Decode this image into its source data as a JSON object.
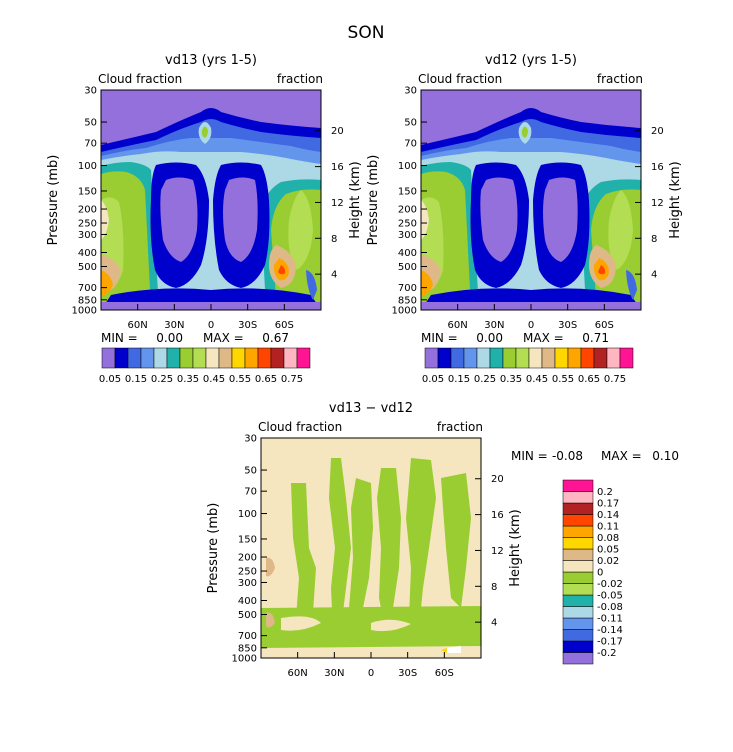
{
  "figure_title": "SON",
  "panel_top_left": {
    "title": "vd13 (yrs 1-5)",
    "left_label": "Cloud fraction",
    "right_label": "fraction",
    "min_label": "MIN =",
    "min_value": "0.00",
    "max_label": "MAX =",
    "max_value": "0.67"
  },
  "panel_top_right": {
    "title": "vd12 (yrs 1-5)",
    "left_label": "Cloud fraction",
    "right_label": "fraction",
    "min_label": "MIN =",
    "min_value": "0.00",
    "max_label": "MAX =",
    "max_value": "0.71"
  },
  "panel_bottom": {
    "title": "vd13 − vd12",
    "left_label": "Cloud fraction",
    "right_label": "fraction",
    "min_label": "MIN =",
    "min_value": "-0.08",
    "max_label": "MAX =",
    "max_value": "0.10"
  },
  "axes": {
    "ylabel": "Pressure (mb)",
    "ylabel_right": "Height (km)",
    "pressure_ticks": [
      "30",
      "50",
      "70",
      "100",
      "150",
      "200",
      "250",
      "300",
      "400",
      "500",
      "700",
      "850",
      "1000"
    ],
    "height_ticks": [
      "20",
      "16",
      "12",
      "8",
      "4"
    ],
    "lat_ticks": [
      "60N",
      "30N",
      "0",
      "30S",
      "60S"
    ]
  },
  "colorbar_top": {
    "colors": [
      "#9370db",
      "#0000cd",
      "#4169e1",
      "#6495ed",
      "#add8e6",
      "#20b2aa",
      "#9acd32",
      "#b3dd52",
      "#f5e6c0",
      "#deb887",
      "#ffd700",
      "#ffa500",
      "#ff4500",
      "#b22222",
      "#ffb6c1",
      "#ff1493"
    ],
    "labels": [
      "0.05",
      "0.15",
      "0.25",
      "0.35",
      "0.45",
      "0.55",
      "0.65",
      "0.75"
    ]
  },
  "colorbar_diff": {
    "colors": [
      "#9370db",
      "#0000cd",
      "#4169e1",
      "#6495ed",
      "#add8e6",
      "#20b2aa",
      "#b3dd52",
      "#9acd32",
      "#f5e6c0",
      "#deb887",
      "#ffd700",
      "#ffa500",
      "#ff4500",
      "#b22222",
      "#ffb6c1",
      "#ff1493"
    ],
    "labels": [
      "-0.2",
      "-0.17",
      "-0.14",
      "-0.11",
      "-0.08",
      "-0.05",
      "-0.02",
      "0",
      "0.02",
      "0.05",
      "0.08",
      "0.11",
      "0.14",
      "0.17",
      "0.2"
    ]
  },
  "chart_data": [
    {
      "type": "heatmap",
      "title": "vd13 (yrs 1-5)",
      "season": "SON",
      "variable": "Cloud fraction",
      "x_axis": [
        "60N",
        "30N",
        "0",
        "30S",
        "60S"
      ],
      "y_axis_pressure_mb": [
        30,
        50,
        70,
        100,
        150,
        200,
        250,
        300,
        400,
        500,
        700,
        850,
        1000
      ],
      "y_axis_height_km": [
        20,
        16,
        12,
        8,
        4
      ],
      "min": 0.0,
      "max": 0.67,
      "ylabel": "Pressure (mb)",
      "ylabel_right": "Height (km)"
    },
    {
      "type": "heatmap",
      "title": "vd12 (yrs 1-5)",
      "season": "SON",
      "variable": "Cloud fraction",
      "x_axis": [
        "60N",
        "30N",
        "0",
        "30S",
        "60S"
      ],
      "y_axis_pressure_mb": [
        30,
        50,
        70,
        100,
        150,
        200,
        250,
        300,
        400,
        500,
        700,
        850,
        1000
      ],
      "y_axis_height_km": [
        20,
        16,
        12,
        8,
        4
      ],
      "min": 0.0,
      "max": 0.71,
      "ylabel": "Pressure (mb)",
      "ylabel_right": "Height (km)"
    },
    {
      "type": "heatmap",
      "title": "vd13 − vd12",
      "season": "SON",
      "variable": "Cloud fraction",
      "x_axis": [
        "60N",
        "30N",
        "0",
        "30S",
        "60S"
      ],
      "y_axis_pressure_mb": [
        30,
        50,
        70,
        100,
        150,
        200,
        250,
        300,
        400,
        500,
        700,
        850,
        1000
      ],
      "y_axis_height_km": [
        20,
        16,
        12,
        8,
        4
      ],
      "min": -0.08,
      "max": 0.1,
      "ylabel": "Pressure (mb)",
      "ylabel_right": "Height (km)"
    }
  ]
}
